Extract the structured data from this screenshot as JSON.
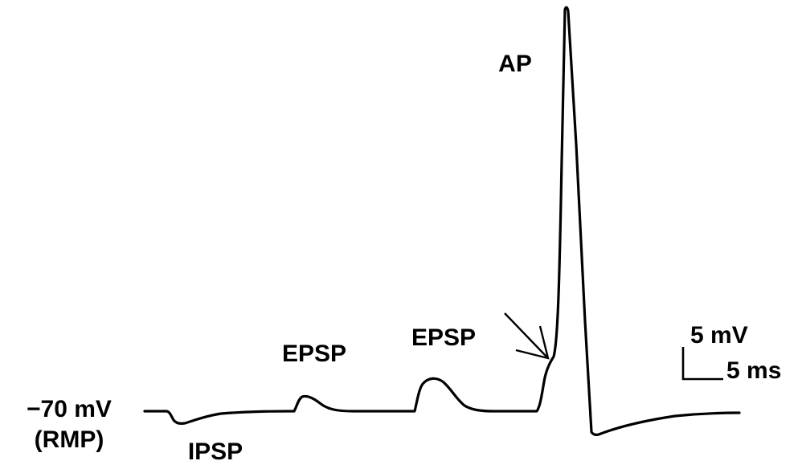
{
  "labels": {
    "ap": "AP",
    "epsp_1": "EPSP",
    "epsp_2": "EPSP",
    "ipsp": "IPSP",
    "rmp_value": "−70 mV",
    "rmp_note": "(RMP)"
  },
  "scale_bar": {
    "voltage": "5 mV",
    "time": "5 ms"
  },
  "colors": {
    "trace": "#000000",
    "background": "#ffffff"
  }
}
